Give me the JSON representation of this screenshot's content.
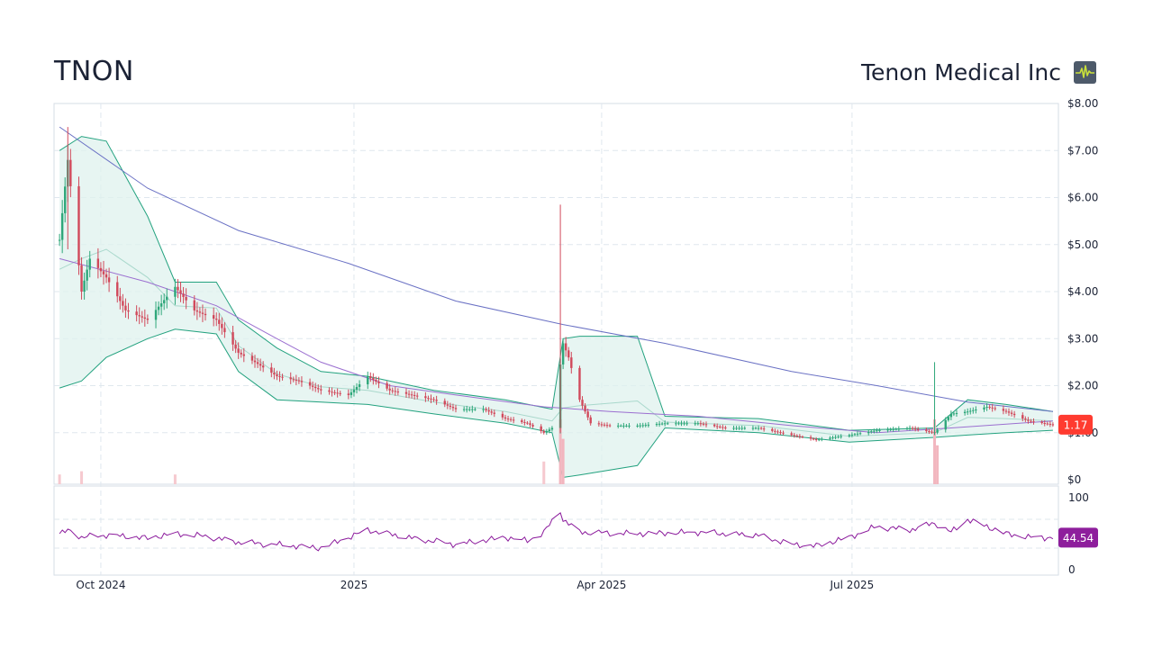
{
  "header": {
    "ticker": "TNON",
    "company": "Tenon Medical Inc"
  },
  "icons": {
    "header_icon": "pulse-icon"
  },
  "colors": {
    "up": "#2ea77a",
    "down": "#d1495b",
    "band_fill": "#dff2ee",
    "band_line": "#23a27f",
    "mid_line": "#a9d8cc",
    "ma_short": "#9b6fd0",
    "ma_long": "#6a71c4",
    "rsi_line": "#8b1a9c",
    "last_price_badge": "#ff3b30",
    "rsi_badge": "#8e1e9c"
  },
  "chart_data": [
    {
      "type": "candlestick",
      "title": "",
      "x_tick_labels": [
        "Oct 2024",
        "2025",
        "Apr 2025",
        "Jul 2025"
      ],
      "y_tick_labels": [
        "$8.00",
        "$7.00",
        "$6.00",
        "$5.00",
        "$4.00",
        "$3.00",
        "$2.00",
        "$1.00",
        "$0"
      ],
      "ylim": [
        0,
        8
      ],
      "grid": true,
      "last_price_label": "1.17",
      "last_price": 1.17,
      "series": [
        {
          "name": "",
          "kind": "close_path",
          "x": [
            "2024-09-16",
            "2024-09-19",
            "2024-09-24",
            "2024-09-27",
            "2024-10-03",
            "2024-10-10",
            "2024-10-18",
            "2024-10-28",
            "2024-11-04",
            "2024-11-12",
            "2024-11-20",
            "2024-11-26",
            "2024-12-04",
            "2024-12-12",
            "2024-12-20",
            "2024-12-30",
            "2025-01-06",
            "2025-01-14",
            "2025-01-22",
            "2025-01-30",
            "2025-02-07",
            "2025-02-17",
            "2025-02-25",
            "2025-03-05",
            "2025-03-11",
            "2025-03-14",
            "2025-03-18",
            "2025-03-20",
            "2025-03-24",
            "2025-03-28",
            "2025-04-04",
            "2025-04-14",
            "2025-04-24",
            "2025-05-06",
            "2025-05-16",
            "2025-05-28",
            "2025-06-09",
            "2025-06-18",
            "2025-06-30",
            "2025-07-10",
            "2025-07-22",
            "2025-07-31",
            "2025-08-06",
            "2025-08-12",
            "2025-08-19",
            "2025-08-26",
            "2025-09-03",
            "2025-09-12"
          ],
          "values": [
            5.1,
            6.8,
            4.0,
            4.7,
            4.3,
            3.6,
            3.4,
            4.1,
            3.6,
            3.4,
            2.7,
            2.5,
            2.2,
            2.1,
            1.9,
            1.8,
            2.2,
            1.9,
            1.8,
            1.7,
            1.5,
            1.5,
            1.3,
            1.2,
            1.0,
            1.1,
            2.9,
            2.6,
            1.7,
            1.2,
            1.15,
            1.15,
            1.2,
            1.2,
            1.1,
            1.1,
            0.95,
            0.85,
            0.95,
            1.05,
            1.1,
            1.0,
            1.4,
            1.45,
            1.55,
            1.45,
            1.25,
            1.17
          ]
        },
        {
          "name": "",
          "kind": "upper_band",
          "x": [
            "2024-09-16",
            "2024-09-24",
            "2024-10-03",
            "2024-10-18",
            "2024-10-28",
            "2024-11-12",
            "2024-11-20",
            "2024-12-04",
            "2024-12-20",
            "2025-01-06",
            "2025-01-30",
            "2025-02-25",
            "2025-03-14",
            "2025-03-18",
            "2025-03-24",
            "2025-04-14",
            "2025-04-24",
            "2025-05-28",
            "2025-06-30",
            "2025-07-31",
            "2025-08-12",
            "2025-08-26",
            "2025-09-12"
          ],
          "values": [
            7.0,
            7.3,
            7.2,
            5.6,
            4.2,
            4.2,
            3.4,
            2.8,
            2.3,
            2.2,
            1.9,
            1.7,
            1.5,
            3.0,
            3.05,
            3.05,
            1.35,
            1.3,
            1.05,
            1.1,
            1.7,
            1.6,
            1.45
          ]
        },
        {
          "name": "",
          "kind": "lower_band",
          "x": [
            "2024-09-16",
            "2024-09-24",
            "2024-10-03",
            "2024-10-18",
            "2024-10-28",
            "2024-11-12",
            "2024-11-20",
            "2024-12-04",
            "2024-12-20",
            "2025-01-06",
            "2025-01-30",
            "2025-02-25",
            "2025-03-14",
            "2025-03-18",
            "2025-03-24",
            "2025-04-14",
            "2025-04-24",
            "2025-05-28",
            "2025-06-30",
            "2025-07-31",
            "2025-08-12",
            "2025-08-26",
            "2025-09-12"
          ],
          "values": [
            1.95,
            2.1,
            2.6,
            3.0,
            3.2,
            3.1,
            2.3,
            1.7,
            1.65,
            1.6,
            1.4,
            1.2,
            1.0,
            0.05,
            0.1,
            0.3,
            1.1,
            1.0,
            0.8,
            0.9,
            0.95,
            1.0,
            1.05
          ]
        },
        {
          "name": "",
          "kind": "ma_short",
          "x": [
            "2024-09-16",
            "2024-10-18",
            "2024-11-12",
            "2024-12-04",
            "2024-12-20",
            "2025-01-14",
            "2025-02-07",
            "2025-03-11",
            "2025-04-04",
            "2025-05-06",
            "2025-06-09",
            "2025-07-10",
            "2025-08-06",
            "2025-09-12"
          ],
          "values": [
            4.7,
            4.2,
            3.7,
            3.0,
            2.5,
            2.0,
            1.8,
            1.55,
            1.45,
            1.35,
            1.15,
            1.0,
            1.1,
            1.25
          ]
        },
        {
          "name": "",
          "kind": "ma_long",
          "x": [
            "2024-09-16",
            "2024-10-18",
            "2024-11-20",
            "2024-12-30",
            "2025-02-07",
            "2025-03-18",
            "2025-04-24",
            "2025-06-09",
            "2025-07-10",
            "2025-08-12",
            "2025-09-12"
          ],
          "values": [
            7.5,
            6.2,
            5.3,
            4.6,
            3.8,
            3.3,
            2.9,
            2.3,
            2.0,
            1.65,
            1.45
          ]
        }
      ],
      "volume_spikes": [
        {
          "x": "2024-09-16",
          "value": 0.15
        },
        {
          "x": "2024-09-24",
          "value": 0.2
        },
        {
          "x": "2024-10-28",
          "value": 0.15
        },
        {
          "x": "2025-03-11",
          "value": 0.35
        },
        {
          "x": "2025-03-17",
          "value": 1.0
        },
        {
          "x": "2025-03-18",
          "value": 0.7
        },
        {
          "x": "2025-07-31",
          "value": 1.0
        },
        {
          "x": "2025-08-01",
          "value": 0.6
        }
      ]
    },
    {
      "type": "line",
      "title": "",
      "y_tick_labels": [
        "100",
        "0"
      ],
      "ylim": [
        0,
        100
      ],
      "last_value_label": "44.54",
      "last_value": 44.54,
      "series": [
        {
          "name": "",
          "x": [
            "2024-09-16",
            "2024-09-20",
            "2024-09-24",
            "2024-10-03",
            "2024-10-18",
            "2024-10-28",
            "2024-11-07",
            "2024-11-20",
            "2024-12-04",
            "2024-12-20",
            "2024-12-30",
            "2025-01-06",
            "2025-01-22",
            "2025-02-07",
            "2025-02-25",
            "2025-03-05",
            "2025-03-11",
            "2025-03-17",
            "2025-03-18",
            "2025-03-24",
            "2025-04-14",
            "2025-05-06",
            "2025-05-28",
            "2025-06-09",
            "2025-06-18",
            "2025-06-30",
            "2025-07-10",
            "2025-07-22",
            "2025-07-31",
            "2025-08-06",
            "2025-08-12",
            "2025-08-19",
            "2025-08-26",
            "2025-09-03",
            "2025-09-12"
          ],
          "values": [
            50,
            55,
            45,
            48,
            44,
            50,
            47,
            38,
            35,
            30,
            45,
            55,
            44,
            35,
            45,
            40,
            52,
            82,
            70,
            52,
            50,
            52,
            48,
            35,
            33,
            45,
            60,
            55,
            65,
            52,
            70,
            60,
            50,
            45,
            44.54
          ]
        }
      ]
    }
  ]
}
